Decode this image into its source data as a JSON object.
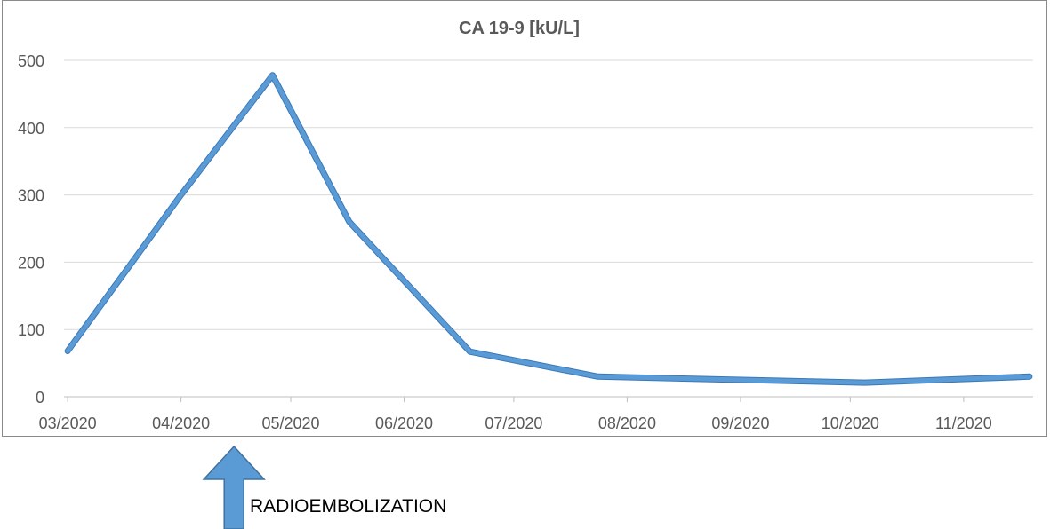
{
  "chart_data": {
    "type": "line",
    "title": "CA 19-9 [kU/L]",
    "xlabel": "",
    "ylabel": "",
    "x_tick_labels": [
      "03/2020",
      "04/2020",
      "05/2020",
      "06/2020",
      "07/2020",
      "08/2020",
      "09/2020",
      "10/2020",
      "11/2020"
    ],
    "ylim": [
      0,
      500
    ],
    "yticks": [
      0,
      100,
      200,
      300,
      400,
      500
    ],
    "grid": "horizontal",
    "legend": "none",
    "series": [
      {
        "color": "#5b9bd5",
        "points": [
          {
            "x": "2020-03-01",
            "y": 68
          },
          {
            "x": "2020-04-01",
            "y": 300
          },
          {
            "x": "2020-04-26",
            "y": 478
          },
          {
            "x": "2020-05-17",
            "y": 260
          },
          {
            "x": "2020-06-19",
            "y": 67
          },
          {
            "x": "2020-07-24",
            "y": 30
          },
          {
            "x": "2020-10-05",
            "y": 21
          },
          {
            "x": "2020-11-19",
            "y": 30
          }
        ]
      }
    ],
    "annotations": [
      {
        "type": "arrow",
        "text": "RADIOEMBOLIZATION",
        "x": "2020-04-15",
        "direction": "up",
        "color": "#5b9bd5"
      }
    ]
  }
}
